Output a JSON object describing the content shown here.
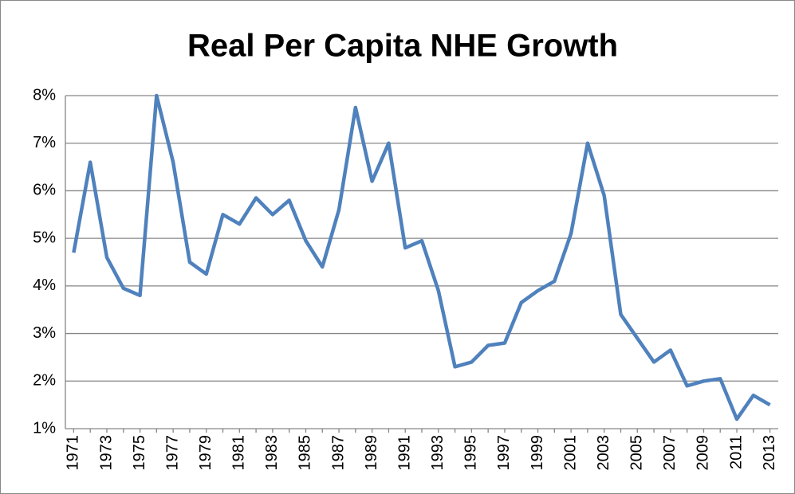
{
  "chart_data": {
    "type": "line",
    "title": "Real Per Capita NHE Growth",
    "categories": [
      "1971",
      null,
      "1973",
      null,
      "1975",
      null,
      "1977",
      null,
      "1979",
      null,
      "1981",
      null,
      "1983",
      null,
      "1985",
      null,
      "1987",
      null,
      "1989",
      null,
      "1991",
      null,
      "1993",
      null,
      "1995",
      null,
      "1997",
      null,
      "1999",
      null,
      "2001",
      null,
      "2003",
      null,
      "2005",
      null,
      "2007",
      null,
      "2009",
      null,
      "2011",
      null,
      "2013"
    ],
    "values": [
      4.7,
      6.6,
      4.6,
      3.95,
      3.8,
      8.0,
      6.6,
      4.5,
      4.25,
      5.5,
      5.3,
      5.85,
      5.5,
      5.8,
      4.95,
      4.4,
      5.6,
      7.75,
      6.2,
      7.0,
      4.8,
      4.95,
      3.9,
      2.3,
      2.4,
      2.75,
      2.8,
      3.65,
      3.9,
      4.1,
      5.1,
      7.0,
      5.9,
      3.4,
      2.9,
      2.4,
      2.65,
      1.9,
      2.0,
      2.05,
      1.2,
      1.7,
      1.5
    ],
    "color": "#4f81bd",
    "ylim": [
      1,
      8
    ],
    "yticks": [
      {
        "value": 1,
        "label": "1%"
      },
      {
        "value": 2,
        "label": "2%"
      },
      {
        "value": 3,
        "label": "3%"
      },
      {
        "value": 4,
        "label": "4%"
      },
      {
        "value": 5,
        "label": "5%"
      },
      {
        "value": 6,
        "label": "6%"
      },
      {
        "value": 7,
        "label": "7%"
      },
      {
        "value": 8,
        "label": "8%"
      }
    ],
    "grid": true
  }
}
